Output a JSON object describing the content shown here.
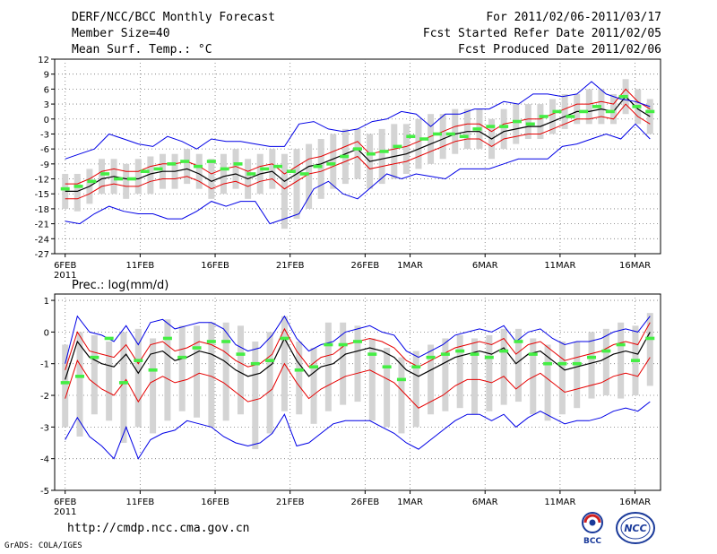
{
  "header": {
    "title": "DERF/NCC/BCC Monthly Forecast",
    "member_size": "Member Size=40",
    "variable": "Mean Surf. Temp.: °C",
    "period": "For 2011/02/06-2011/03/17",
    "started": "Fcst Started Refer Date 2011/02/05",
    "produced": "Fcst Produced Date 2011/02/06"
  },
  "footer": {
    "url": "http://cmdp.ncc.cma.gov.cn",
    "grads": "GrADS: COLA/IGES",
    "logo_bcc": "BCC",
    "logo_ncc": "NCC"
  },
  "colors": {
    "ensemble_mean": "#000000",
    "spread": "#e60000",
    "extremes": "#0000e6",
    "box": "#d4d4d4",
    "median": "#44ee44"
  },
  "chart_data": [
    {
      "type": "line",
      "title": "Mean Surf. Temp.: °C",
      "ylabel": "°C",
      "ylim": [
        -27,
        12
      ],
      "yticks": [
        12,
        9,
        6,
        3,
        0,
        -3,
        -6,
        -9,
        -12,
        -15,
        -18,
        -21,
        -24,
        -27
      ],
      "xlim": [
        -0.7,
        39.7
      ],
      "xtick_labels": [
        {
          "day": 0,
          "label": "6FEB"
        },
        {
          "day": 5,
          "label": "11FEB"
        },
        {
          "day": 10,
          "label": "16FEB"
        },
        {
          "day": 15,
          "label": "21FEB"
        },
        {
          "day": 20,
          "label": "26FEB"
        },
        {
          "day": 23,
          "label": "1MAR"
        },
        {
          "day": 28,
          "label": "6MAR"
        },
        {
          "day": 33,
          "label": "11MAR"
        },
        {
          "day": 38,
          "label": "16MAR"
        }
      ],
      "year_label": "2011",
      "grid": true,
      "series": [
        {
          "name": "ensemble mean",
          "values": [
            -14.5,
            -14.5,
            -13.5,
            -12,
            -11.5,
            -12,
            -12,
            -11,
            -10.5,
            -10.5,
            -10,
            -11,
            -12.5,
            -11.5,
            -11,
            -12,
            -11,
            -10.5,
            -12.5,
            -11,
            -9.5,
            -9,
            -8,
            -7,
            -6,
            -8.5,
            -8,
            -7.5,
            -7,
            -6,
            -5,
            -4,
            -3,
            -2.5,
            -2.5,
            -4,
            -2.5,
            -2,
            -1.5,
            -1.5,
            -0.5,
            0.5,
            1.5,
            1.5,
            2,
            1.5,
            4.5,
            2,
            0.5
          ]
        },
        {
          "name": "spread upper",
          "values": [
            -13,
            -13,
            -12,
            -10.5,
            -10,
            -10.5,
            -10.5,
            -9.5,
            -9,
            -9,
            -8.5,
            -9.5,
            -11,
            -10,
            -9.5,
            -10.5,
            -9.5,
            -9,
            -11,
            -9.5,
            -8,
            -7.5,
            -6.5,
            -5.5,
            -4.5,
            -7,
            -6.5,
            -6,
            -5.5,
            -4.5,
            -3.5,
            -2.5,
            -1.5,
            -1,
            -1,
            -2.5,
            -1,
            -0.5,
            0,
            0,
            1,
            2,
            3,
            3,
            3.5,
            3,
            6,
            3.5,
            2
          ]
        },
        {
          "name": "spread lower",
          "values": [
            -16,
            -16,
            -15,
            -13.5,
            -13,
            -13.5,
            -13.5,
            -12.5,
            -12,
            -12,
            -11.5,
            -12.5,
            -14,
            -13,
            -12.5,
            -13.5,
            -12.5,
            -12,
            -14,
            -12.5,
            -11,
            -10.5,
            -9.5,
            -8.5,
            -7.5,
            -10,
            -9.5,
            -9,
            -8.5,
            -7.5,
            -6.5,
            -5.5,
            -4.5,
            -4,
            -4,
            -5.5,
            -4,
            -3.5,
            -3,
            -3,
            -2,
            -1,
            0,
            0,
            0.5,
            0,
            3,
            0.5,
            -1
          ]
        },
        {
          "name": "maximum",
          "values": [
            -8,
            -7,
            -6,
            -3,
            -4,
            -5,
            -5.5,
            -3.5,
            -4.5,
            -6,
            -4,
            -4.5,
            -4.5,
            -5,
            -5.5,
            -5.5,
            -1,
            -0.5,
            -2,
            -2.5,
            -2,
            -0.5,
            0,
            1.5,
            1,
            -1.5,
            1,
            1,
            2,
            2,
            3.5,
            3,
            5,
            5,
            4.5,
            5,
            7.5,
            5,
            4,
            3.5,
            2.5
          ]
        },
        {
          "name": "minimum",
          "values": [
            -20.5,
            -21,
            -19,
            -17.5,
            -18.5,
            -19,
            -19,
            -20,
            -20,
            -18.5,
            -16.5,
            -17.5,
            -16.5,
            -16.5,
            -21,
            -20,
            -19,
            -14,
            -12.5,
            -15,
            -16,
            -13.5,
            -11,
            -12,
            -11,
            -11.5,
            -12,
            -10,
            -10,
            -10,
            -9,
            -8,
            -8,
            -8,
            -5.5,
            -5,
            -4,
            -3,
            -4,
            -1,
            -4
          ]
        },
        {
          "name": "median",
          "values": [
            -14,
            -13.5,
            -12.5,
            -11,
            -12,
            -12,
            -10.5,
            -10,
            -9,
            -8.5,
            -9.5,
            -8.5,
            -10,
            -9,
            -11,
            -10,
            -9.5,
            -10.5,
            -11,
            -9.5,
            -9,
            -7.5,
            -6,
            -7,
            -6.5,
            -5.5,
            -3.5,
            -4,
            -3,
            -3,
            -3.5,
            -2,
            -1.5,
            -1.5,
            -0.5,
            -1,
            0.5,
            1.5,
            0.5,
            1.5,
            2.5,
            1.5,
            4.5,
            2.5,
            1.5
          ]
        }
      ],
      "boxes": [
        [
          -18,
          -11
        ],
        [
          -18.5,
          -11
        ],
        [
          -17,
          -10
        ],
        [
          -15,
          -8
        ],
        [
          -15,
          -8
        ],
        [
          -16,
          -9
        ],
        [
          -15,
          -8
        ],
        [
          -15,
          -7.5
        ],
        [
          -14,
          -7
        ],
        [
          -14,
          -7
        ],
        [
          -13,
          -6
        ],
        [
          -14,
          -7
        ],
        [
          -16,
          -8
        ],
        [
          -15,
          -7
        ],
        [
          -14,
          -6
        ],
        [
          -16,
          -8
        ],
        [
          -15,
          -7
        ],
        [
          -14,
          -6
        ],
        [
          -22,
          -7
        ],
        [
          -20,
          -6
        ],
        [
          -18,
          -5
        ],
        [
          -16,
          -4
        ],
        [
          -14,
          -3
        ],
        [
          -13,
          -2
        ],
        [
          -12,
          -2
        ],
        [
          -14,
          -3
        ],
        [
          -13,
          -2
        ],
        [
          -12,
          -1
        ],
        [
          -11,
          -1
        ],
        [
          -10,
          0
        ],
        [
          -9,
          1
        ],
        [
          -8,
          1
        ],
        [
          -7,
          2
        ],
        [
          -6,
          2
        ],
        [
          -6,
          2
        ],
        [
          -8,
          0
        ],
        [
          -6,
          2
        ],
        [
          -5,
          3
        ],
        [
          -4,
          3
        ],
        [
          -4,
          3
        ],
        [
          -3,
          4
        ],
        [
          -2,
          5
        ],
        [
          -1,
          5
        ],
        [
          -1,
          6
        ],
        [
          -1,
          6
        ],
        [
          -1,
          5
        ],
        [
          1,
          8
        ],
        [
          -1,
          6
        ],
        [
          -3,
          4
        ]
      ]
    },
    {
      "type": "line",
      "title": "Prec.: log(mm/d)",
      "ylabel": "log(mm/d)",
      "ylim": [
        -5,
        1.2
      ],
      "yticks": [
        1,
        0,
        -1,
        -2,
        -3,
        -4,
        -5
      ],
      "xlim": [
        -0.7,
        39.7
      ],
      "xtick_labels": [
        {
          "day": 0,
          "label": "6FEB"
        },
        {
          "day": 5,
          "label": "11FEB"
        },
        {
          "day": 10,
          "label": "16FEB"
        },
        {
          "day": 15,
          "label": "21FEB"
        },
        {
          "day": 20,
          "label": "26FEB"
        },
        {
          "day": 23,
          "label": "1MAR"
        },
        {
          "day": 28,
          "label": "6MAR"
        },
        {
          "day": 33,
          "label": "11MAR"
        },
        {
          "day": 38,
          "label": "16MAR"
        }
      ],
      "year_label": "2011",
      "grid": true,
      "series": [
        {
          "name": "ensemble mean",
          "values": [
            -1.5,
            -0.3,
            -0.8,
            -1.0,
            -1.1,
            -0.7,
            -1.3,
            -0.7,
            -0.6,
            -0.9,
            -0.8,
            -0.6,
            -0.7,
            -0.9,
            -1.2,
            -1.4,
            -1.3,
            -1.0,
            -0.2,
            -0.9,
            -1.4,
            -1.1,
            -1.0,
            -0.7,
            -0.6,
            -0.5,
            -0.6,
            -0.8,
            -1.2,
            -1.4,
            -1.2,
            -1.0,
            -0.8,
            -0.7,
            -0.6,
            -0.7,
            -0.5,
            -1.0,
            -0.7,
            -0.6,
            -0.9,
            -1.2,
            -1.1,
            -1.0,
            -0.9,
            -0.7,
            -0.6,
            -0.7,
            0.0
          ]
        },
        {
          "name": "spread upper",
          "values": [
            -1.2,
            0.0,
            -0.6,
            -0.7,
            -0.8,
            -0.4,
            -1.0,
            -0.4,
            -0.3,
            -0.6,
            -0.5,
            -0.3,
            -0.4,
            -0.6,
            -0.9,
            -1.1,
            -1.0,
            -0.7,
            0.1,
            -0.6,
            -1.1,
            -0.8,
            -0.7,
            -0.4,
            -0.3,
            -0.2,
            -0.3,
            -0.5,
            -0.9,
            -1.1,
            -0.9,
            -0.7,
            -0.5,
            -0.4,
            -0.3,
            -0.4,
            -0.2,
            -0.7,
            -0.4,
            -0.3,
            -0.6,
            -0.9,
            -0.8,
            -0.7,
            -0.6,
            -0.4,
            -0.3,
            -0.4,
            0.3
          ]
        },
        {
          "name": "spread lower",
          "values": [
            -2.1,
            -0.9,
            -1.5,
            -1.8,
            -2.0,
            -1.5,
            -2.2,
            -1.6,
            -1.4,
            -1.6,
            -1.5,
            -1.3,
            -1.4,
            -1.6,
            -1.9,
            -2.2,
            -2.1,
            -1.8,
            -1.0,
            -1.6,
            -2.1,
            -1.8,
            -1.6,
            -1.4,
            -1.3,
            -1.2,
            -1.4,
            -1.6,
            -2.0,
            -2.4,
            -2.2,
            -2.0,
            -1.7,
            -1.5,
            -1.5,
            -1.6,
            -1.4,
            -1.8,
            -1.5,
            -1.3,
            -1.6,
            -1.9,
            -1.8,
            -1.7,
            -1.6,
            -1.4,
            -1.3,
            -1.4,
            -0.8
          ]
        },
        {
          "name": "maximum",
          "values": [
            -1.0,
            0.5,
            0.0,
            -0.1,
            -0.3,
            0.2,
            -0.4,
            0.3,
            0.4,
            0.1,
            0.2,
            0.3,
            0.3,
            0.1,
            -0.4,
            -0.6,
            -0.5,
            -0.1,
            0.5,
            -0.2,
            -0.6,
            -0.4,
            -0.3,
            0.0,
            0.1,
            0.2,
            0.0,
            -0.1,
            -0.6,
            -0.8,
            -0.6,
            -0.4,
            -0.1,
            0.0,
            0.1,
            0.0,
            0.2,
            -0.3,
            0.0,
            0.1,
            -0.2,
            -0.4,
            -0.3,
            -0.3,
            -0.2,
            0.0,
            0.1,
            0.0,
            0.5
          ]
        },
        {
          "name": "minimum",
          "values": [
            -3.4,
            -2.7,
            -3.3,
            -3.6,
            -4.0,
            -3.0,
            -4.0,
            -3.4,
            -3.2,
            -3.1,
            -2.8,
            -2.9,
            -3.0,
            -3.3,
            -3.5,
            -3.6,
            -3.5,
            -3.2,
            -2.6,
            -3.6,
            -3.5,
            -3.2,
            -2.9,
            -2.8,
            -2.8,
            -2.8,
            -3.0,
            -3.2,
            -3.5,
            -3.7,
            -3.4,
            -3.1,
            -2.8,
            -2.6,
            -2.6,
            -2.8,
            -2.6,
            -3.0,
            -2.7,
            -2.5,
            -2.7,
            -2.9,
            -2.8,
            -2.8,
            -2.7,
            -2.5,
            -2.4,
            -2.5,
            -2.2
          ]
        },
        {
          "name": "median",
          "values": [
            -1.6,
            -1.4,
            -0.8,
            -0.2,
            -1.6,
            -0.9,
            -1.2,
            -0.2,
            -0.8,
            -0.5,
            -0.3,
            -0.3,
            -0.7,
            -1.0,
            -0.9,
            -0.2,
            -1.2,
            -1.1,
            -0.4,
            -0.4,
            -0.3,
            -0.7,
            -1.1,
            -1.5,
            -1.1,
            -0.8,
            -0.7,
            -0.6,
            -0.7,
            -0.8,
            -0.6,
            -0.3,
            -0.7,
            -1.0,
            -1.0,
            -1.0,
            -0.8,
            -0.6,
            -0.4,
            -0.9,
            -0.2
          ]
        }
      ],
      "boxes": [
        [
          -3.0,
          -0.4
        ],
        [
          -3.3,
          0.0
        ],
        [
          -2.6,
          -0.1
        ],
        [
          -2.8,
          -0.3
        ],
        [
          -3.5,
          0.0
        ],
        [
          -3.0,
          0.1
        ],
        [
          -3.2,
          -0.2
        ],
        [
          -2.8,
          0.4
        ],
        [
          -2.5,
          0.2
        ],
        [
          -2.7,
          0.2
        ],
        [
          -3.0,
          0.3
        ],
        [
          -2.8,
          0.3
        ],
        [
          -2.6,
          0.2
        ],
        [
          -3.7,
          -0.3
        ],
        [
          -3.2,
          0.0
        ],
        [
          -2.5,
          0.5
        ],
        [
          -2.6,
          -0.3
        ],
        [
          -2.9,
          -0.5
        ],
        [
          -2.5,
          0.3
        ],
        [
          -2.3,
          0.3
        ],
        [
          -2.2,
          0.2
        ],
        [
          -2.8,
          -0.2
        ],
        [
          -3.0,
          -0.5
        ],
        [
          -3.2,
          -0.8
        ],
        [
          -3.0,
          -0.6
        ],
        [
          -2.6,
          -0.4
        ],
        [
          -2.5,
          -0.2
        ],
        [
          -2.4,
          -0.1
        ],
        [
          -2.6,
          -0.2
        ],
        [
          -2.5,
          -0.1
        ],
        [
          -2.3,
          0.1
        ],
        [
          -2.2,
          0.1
        ],
        [
          -2.6,
          -0.2
        ],
        [
          -2.8,
          -0.4
        ],
        [
          -2.6,
          -0.3
        ],
        [
          -2.4,
          -0.3
        ],
        [
          -2.1,
          0.0
        ],
        [
          -2.0,
          0.1
        ],
        [
          -2.1,
          0.3
        ],
        [
          -2.0,
          0.2
        ],
        [
          -1.7,
          0.6
        ]
      ]
    }
  ]
}
